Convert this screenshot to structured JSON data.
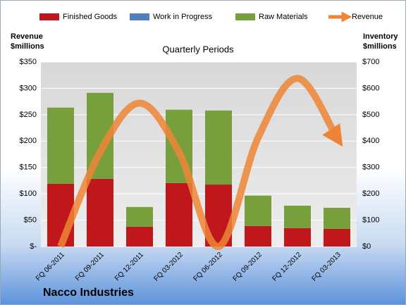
{
  "chart_data": {
    "type": "bar",
    "stacked": true,
    "title": "Quarterly Periods",
    "y_label": "Revenue $millions",
    "y2_label": "Inventory $millions",
    "footer": "Nacco Industries",
    "categories": [
      "FQ 06-2011",
      "FQ 09-2011",
      "FQ 12-2011",
      "FQ 03-2012",
      "FQ 06-2012",
      "FQ 09-2012",
      "FQ 12-2012",
      "FQ 03-2013"
    ],
    "series": [
      {
        "name": "Finished Goods",
        "color": "#c0171c",
        "axis": "y2",
        "values": [
          238,
          257,
          75,
          241,
          235,
          78,
          70,
          67
        ]
      },
      {
        "name": "Work in Progress",
        "color": "#4f81bd",
        "axis": "y2",
        "values": [
          0,
          0,
          0,
          0,
          0,
          0,
          0,
          0
        ]
      },
      {
        "name": "Raw Materials",
        "color": "#77a03c",
        "axis": "y2",
        "values": [
          289,
          326,
          75,
          278,
          281,
          115,
          85,
          80
        ]
      },
      {
        "name": "Revenue",
        "color": "#ee8536",
        "type": "line",
        "values": [
          0,
          179,
          272,
          179,
          0,
          206,
          319,
          206
        ]
      }
    ],
    "ylim": [
      0,
      350
    ],
    "yticks": [
      {
        "value": 0,
        "label": "$-"
      },
      {
        "value": 50,
        "label": "$50"
      },
      {
        "value": 100,
        "label": "$100"
      },
      {
        "value": 150,
        "label": "$150"
      },
      {
        "value": 200,
        "label": "$200"
      },
      {
        "value": 250,
        "label": "$250"
      },
      {
        "value": 300,
        "label": "$300"
      },
      {
        "value": 350,
        "label": "$350"
      }
    ],
    "y2lim": [
      0,
      700
    ],
    "y2ticks": [
      {
        "value": 0,
        "label": "$0"
      },
      {
        "value": 100,
        "label": "$100"
      },
      {
        "value": 200,
        "label": "$200"
      },
      {
        "value": 300,
        "label": "$300"
      },
      {
        "value": 400,
        "label": "$400"
      },
      {
        "value": 500,
        "label": "$500"
      },
      {
        "value": 600,
        "label": "$600"
      },
      {
        "value": 700,
        "label": "$700"
      }
    ],
    "grid": true
  }
}
